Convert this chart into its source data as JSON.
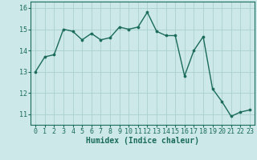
{
  "x": [
    0,
    1,
    2,
    3,
    4,
    5,
    6,
    7,
    8,
    9,
    10,
    11,
    12,
    13,
    14,
    15,
    16,
    17,
    18,
    19,
    20,
    21,
    22,
    23
  ],
  "y": [
    13.0,
    13.7,
    13.8,
    15.0,
    14.9,
    14.5,
    14.8,
    14.5,
    14.6,
    15.1,
    15.0,
    15.1,
    15.8,
    14.9,
    14.7,
    14.7,
    12.8,
    14.0,
    14.65,
    12.2,
    11.6,
    10.9,
    11.1,
    11.2
  ],
  "line_color": "#1a6b5a",
  "marker": "o",
  "marker_size": 2.2,
  "bg_color": "#cce8e8",
  "grid_color": "#aacfcf",
  "xlabel": "Humidex (Indice chaleur)",
  "ylim": [
    10.5,
    16.3
  ],
  "yticks": [
    11,
    12,
    13,
    14,
    15,
    16
  ],
  "xticks": [
    0,
    1,
    2,
    3,
    4,
    5,
    6,
    7,
    8,
    9,
    10,
    11,
    12,
    13,
    14,
    15,
    16,
    17,
    18,
    19,
    20,
    21,
    22,
    23
  ],
  "xlabel_fontsize": 7.0,
  "tick_fontsize": 6.0,
  "linewidth": 1.0
}
